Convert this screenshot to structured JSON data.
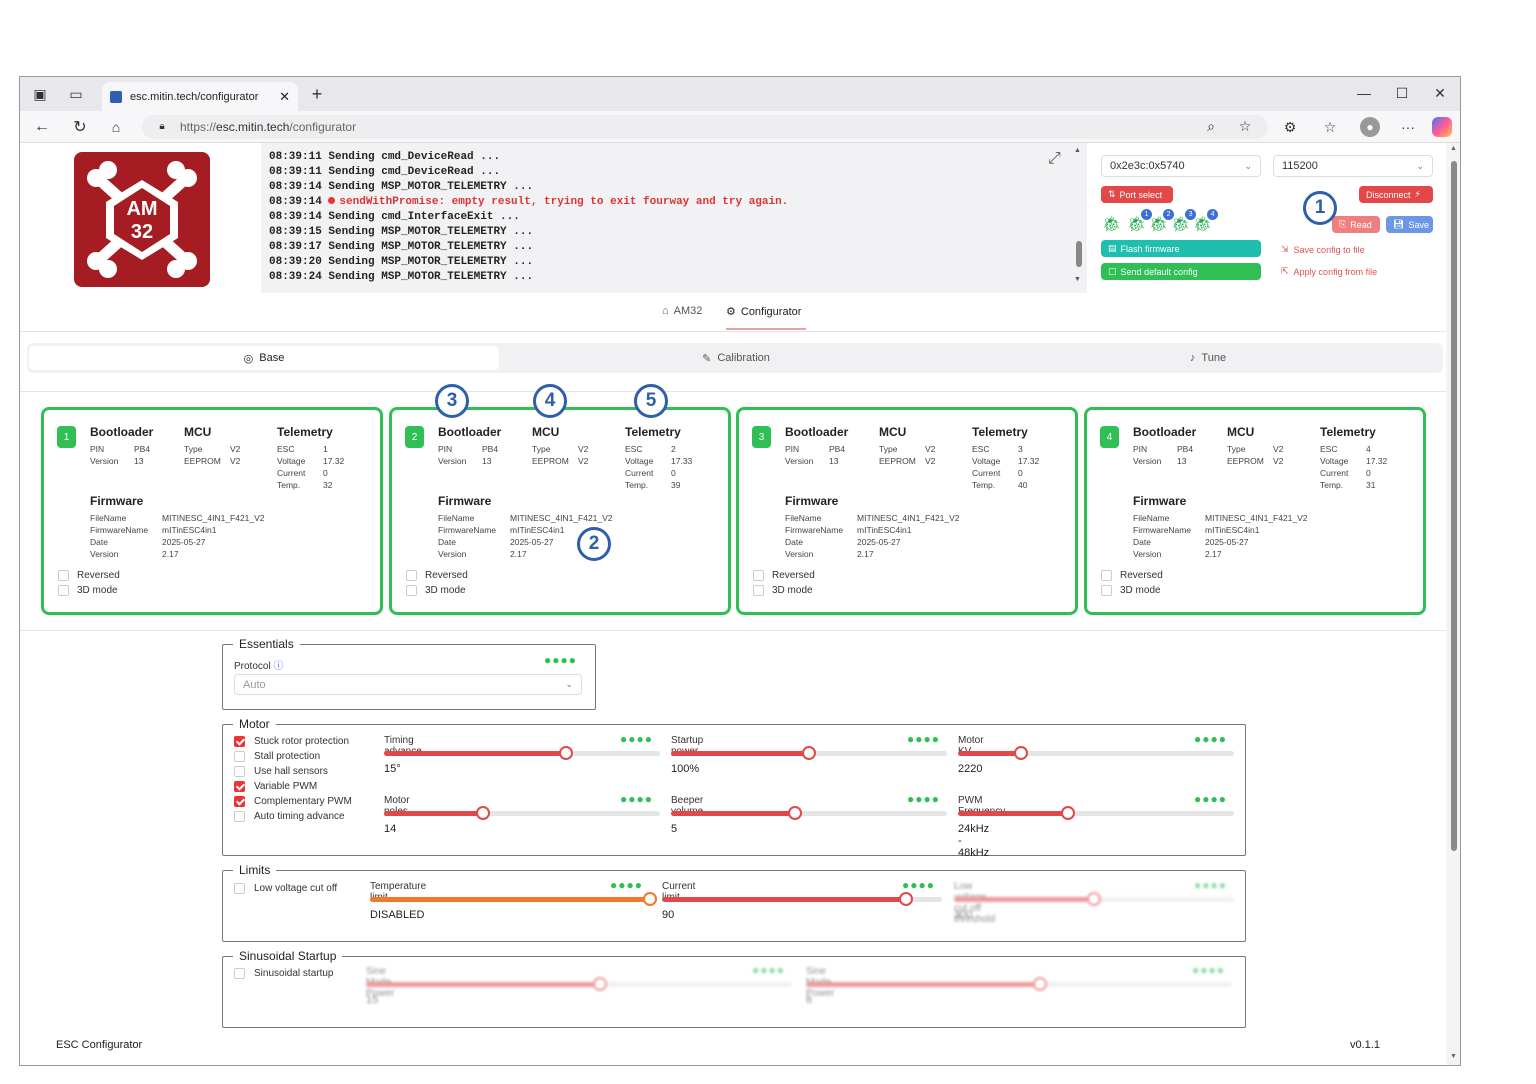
{
  "browser": {
    "tab_title": "esc.mitin.tech/configurator",
    "url_proto": "https://",
    "url_host": "esc.mitin.tech",
    "url_path": "/configurator"
  },
  "logo": {
    "text_top": "AM",
    "text_bottom": "32"
  },
  "console": {
    "lines": [
      {
        "t": "08:39:11",
        "msg": "Sending cmd_DeviceRead ...",
        "err": false
      },
      {
        "t": "08:39:11",
        "msg": "Sending cmd_DeviceRead ...",
        "err": false
      },
      {
        "t": "08:39:14",
        "msg": "Sending MSP_MOTOR_TELEMETRY ...",
        "err": false
      },
      {
        "t": "08:39:14",
        "msg": "sendWithPromise: empty result, trying to exit fourway and try again.",
        "err": true
      },
      {
        "t": "08:39:14",
        "msg": "Sending cmd_InterfaceExit ...",
        "err": false
      },
      {
        "t": "08:39:15",
        "msg": "Sending MSP_MOTOR_TELEMETRY ...",
        "err": false
      },
      {
        "t": "08:39:17",
        "msg": "Sending MSP_MOTOR_TELEMETRY ...",
        "err": false
      },
      {
        "t": "08:39:20",
        "msg": "Sending MSP_MOTOR_TELEMETRY ...",
        "err": false
      },
      {
        "t": "08:39:24",
        "msg": "Sending MSP_MOTOR_TELEMETRY ...",
        "err": false
      }
    ]
  },
  "controls": {
    "port": "0x2e3c:0x5740",
    "baud": "115200",
    "port_select": "Port select",
    "disconnect": "Disconnect",
    "read": "Read",
    "save": "Save",
    "flash_firmware": "Flash firmware",
    "send_default": "Send default config",
    "save_config": "Save config to file",
    "apply_config": "Apply config from file",
    "bug_numbers": [
      "1",
      "2",
      "3",
      "4"
    ]
  },
  "callouts": [
    "1",
    "2",
    "3",
    "4",
    "5"
  ],
  "nav": {
    "am32": "AM32",
    "configurator": "Configurator"
  },
  "subtabs": {
    "base": "Base",
    "calibration": "Calibration",
    "tune": "Tune"
  },
  "esc_labels": {
    "bootloader": "Bootloader",
    "mcu": "MCU",
    "telemetry": "Telemetry",
    "firmware": "Firmware",
    "pin": "PIN",
    "version": "Version",
    "type": "Type",
    "eeprom": "EEPROM",
    "esc": "ESC",
    "voltage": "Voltage",
    "current": "Current",
    "temp": "Temp.",
    "filename": "FileName",
    "firmwarename": "FirmwareName",
    "date": "Date",
    "reversed": "Reversed",
    "mode3d": "3D mode"
  },
  "escs": [
    {
      "num": "1",
      "pin": "PB4",
      "bl_version": "13",
      "type": "V2",
      "eeprom": "V2",
      "esc": "1",
      "voltage": "17.32",
      "current": "0",
      "temp": "32",
      "filename": "MITINESC_4IN1_F421_V2",
      "fwname": "mITinESC4in1",
      "date": "2025-05-27",
      "fw_version": "2.17"
    },
    {
      "num": "2",
      "pin": "PB4",
      "bl_version": "13",
      "type": "V2",
      "eeprom": "V2",
      "esc": "2",
      "voltage": "17.33",
      "current": "0",
      "temp": "39",
      "filename": "MITINESC_4IN1_F421_V2",
      "fwname": "mITinESC4in1",
      "date": "2025-05-27",
      "fw_version": "2.17"
    },
    {
      "num": "3",
      "pin": "PB4",
      "bl_version": "13",
      "type": "V2",
      "eeprom": "V2",
      "esc": "3",
      "voltage": "17.32",
      "current": "0",
      "temp": "40",
      "filename": "MITINESC_4IN1_F421_V2",
      "fwname": "mITinESC4in1",
      "date": "2025-05-27",
      "fw_version": "2.17"
    },
    {
      "num": "4",
      "pin": "PB4",
      "bl_version": "13",
      "type": "V2",
      "eeprom": "V2",
      "esc": "4",
      "voltage": "17.32",
      "current": "0",
      "temp": "31",
      "filename": "MITINESC_4IN1_F421_V2",
      "fwname": "mITinESC4in1",
      "date": "2025-05-27",
      "fw_version": "2.17"
    }
  ],
  "essentials": {
    "legend": "Essentials",
    "protocol_label": "Protocol",
    "protocol_value": "Auto"
  },
  "motor": {
    "legend": "Motor",
    "checks": [
      {
        "label": "Stuck rotor protection",
        "on": true
      },
      {
        "label": "Stall protection",
        "on": false
      },
      {
        "label": "Use hall sensors",
        "on": false
      },
      {
        "label": "Variable PWM",
        "on": true
      },
      {
        "label": "Complementary PWM",
        "on": true
      },
      {
        "label": "Auto timing advance",
        "on": false
      }
    ],
    "sliders": [
      {
        "label": "Timing advance",
        "value": "15°",
        "level": 0.66
      },
      {
        "label": "Startup power",
        "value": "100%",
        "level": 0.5
      },
      {
        "label": "Motor KV",
        "value": "2220",
        "level": 0.23
      },
      {
        "label": "Motor poles",
        "value": "14",
        "level": 0.36
      },
      {
        "label": "Beeper volume",
        "value": "5",
        "level": 0.45
      },
      {
        "label": "PWM Frequency",
        "value": "24kHz - 48kHz",
        "level": 0.4
      }
    ]
  },
  "limits": {
    "legend": "Limits",
    "low_voltage_cutoff": "Low voltage cut off",
    "sliders": [
      {
        "label": "Temperature limit",
        "value": "DISABLED",
        "level": 1.0
      },
      {
        "label": "Current limit",
        "value": "90",
        "level": 0.87
      },
      {
        "label": "Low voltage cut off threshold",
        "value": "300",
        "level": 0.5
      }
    ]
  },
  "sinusoidal": {
    "legend": "Sinusoidal Startup",
    "checkbox": "Sinusoidal startup",
    "sliders": [
      {
        "label": "Sine Mode Power",
        "value": "15",
        "level": 0.55
      },
      {
        "label": "Sine Mode Power",
        "value": "6",
        "level": 0.55
      }
    ]
  },
  "footer": {
    "app": "ESC Configurator",
    "version": "v0.1.1"
  },
  "colors": {
    "green": "#2fbf55",
    "red": "#e34848",
    "accent_blue": "#2e5fad",
    "teal": "#1fbfb0"
  }
}
